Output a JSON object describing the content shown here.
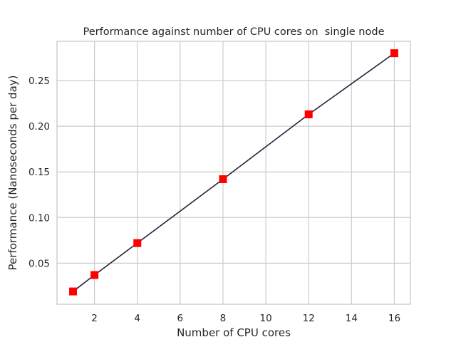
{
  "chart_data": {
    "type": "line",
    "title": "Performance against number of CPU cores on  single node",
    "xlabel": "Number of CPU cores",
    "ylabel": "Performance (Nanoseconds per day)",
    "xlim": [
      0.25,
      16.75
    ],
    "ylim": [
      0.005,
      0.293
    ],
    "xticks": [
      2,
      4,
      6,
      8,
      10,
      12,
      14,
      16
    ],
    "yticks": [
      0.05,
      0.1,
      0.15,
      0.2,
      0.25
    ],
    "ytick_labels": [
      "0.05",
      "0.10",
      "0.15",
      "0.20",
      "0.25"
    ],
    "grid": true,
    "series": [
      {
        "x": [
          1,
          2,
          4,
          8,
          12,
          16
        ],
        "values": [
          0.019,
          0.037,
          0.072,
          0.142,
          0.213,
          0.28
        ],
        "line_color": "#2a1f3d",
        "marker": "square",
        "marker_color": "#ff0000"
      }
    ]
  }
}
